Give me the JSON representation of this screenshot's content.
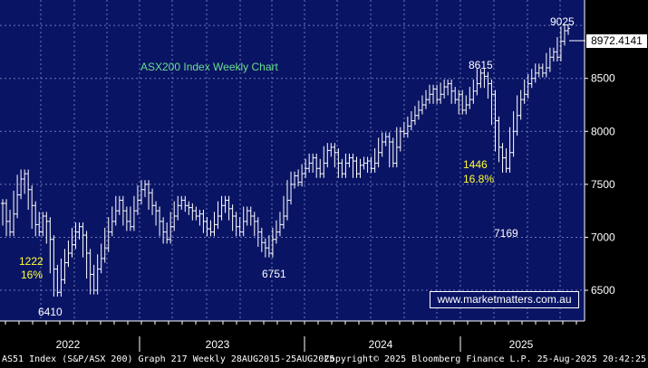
{
  "chart_data": {
    "type": "line",
    "title": "ASX200 Index Weekly Chart",
    "x_tick_labels": [
      "2022",
      "2023",
      "2024",
      "2025"
    ],
    "y_tick_labels": [
      "6500",
      "7000",
      "7500",
      "8000",
      "8500"
    ],
    "y_ticks": [
      6500,
      7000,
      7500,
      8000,
      8500
    ],
    "ylim": [
      6210,
      9240
    ],
    "last_value_label": "8972.4141",
    "grid": true,
    "colors": {
      "plot_background": "#0a1464",
      "grid": "#6a7ab8",
      "series": "#ffffff",
      "annotation_yellow": "#ffff33",
      "annotation_white": "#ffffff",
      "title_green": "#66e08c"
    },
    "annotations": [
      {
        "id": "low-6410",
        "text": "6410",
        "color": "white"
      },
      {
        "id": "move-1222",
        "text": "1222",
        "color": "yellow"
      },
      {
        "id": "move-16pct",
        "text": "16%",
        "color": "yellow"
      },
      {
        "id": "low-6751",
        "text": "6751",
        "color": "white"
      },
      {
        "id": "high-8615",
        "text": "8615",
        "color": "white"
      },
      {
        "id": "move-1446",
        "text": "1446",
        "color": "yellow"
      },
      {
        "id": "move-16-8pct",
        "text": "16.8%",
        "color": "yellow"
      },
      {
        "id": "low-7169",
        "text": "7169",
        "color": "white"
      },
      {
        "id": "high-9025",
        "text": "9025",
        "color": "white"
      }
    ],
    "series": [
      {
        "values": [
          7320,
          7150,
          7050,
          7220,
          7400,
          7550,
          7600,
          7450,
          7300,
          7120,
          7050,
          7200,
          7150,
          6980,
          6700,
          6480,
          6600,
          6760,
          6850,
          6930,
          7050,
          7100,
          7020,
          6850,
          6650,
          6500,
          6700,
          6800,
          6900,
          7050,
          7150,
          7250,
          7350,
          7250,
          7150,
          7100,
          7250,
          7350,
          7450,
          7500,
          7420,
          7300,
          7250,
          7150,
          7050,
          6980,
          7100,
          7200,
          7300,
          7350,
          7300,
          7280,
          7250,
          7200,
          7220,
          7150,
          7080,
          7050,
          7120,
          7200,
          7300,
          7350,
          7270,
          7200,
          7100,
          7050,
          7150,
          7250,
          7200,
          7150,
          7050,
          6950,
          6900,
          6850,
          6980,
          7050,
          7120,
          7200,
          7350,
          7500,
          7580,
          7520,
          7600,
          7650,
          7700,
          7750,
          7650,
          7600,
          7700,
          7820,
          7850,
          7800,
          7700,
          7600,
          7700,
          7750,
          7720,
          7600,
          7680,
          7700,
          7720,
          7650,
          7700,
          7800,
          7900,
          7950,
          7900,
          7700,
          7850,
          8000,
          7980,
          8050,
          8100,
          8150,
          8200,
          8250,
          8300,
          8350,
          8400,
          8300,
          8350,
          8420,
          8450,
          8380,
          8300,
          8350,
          8200,
          8250,
          8300,
          8380,
          8450,
          8550,
          8520,
          8450,
          8350,
          8100,
          7850,
          7750,
          7650,
          7800,
          8000,
          8150,
          8300,
          8350,
          8450,
          8500,
          8550,
          8600,
          8550,
          8600,
          8700,
          8750,
          8700,
          8850,
          8950,
          8972
        ]
      }
    ]
  },
  "footer": {
    "left": "AS51 Index (S&P/ASX 200) Graph 217  Weekly 28AUG2015-25AUG2025",
    "right": "Copyright© 2025 Bloomberg Finance L.P.  25-Aug-2025 20:42:25"
  },
  "watermark": "www.marketmatters.com.au"
}
